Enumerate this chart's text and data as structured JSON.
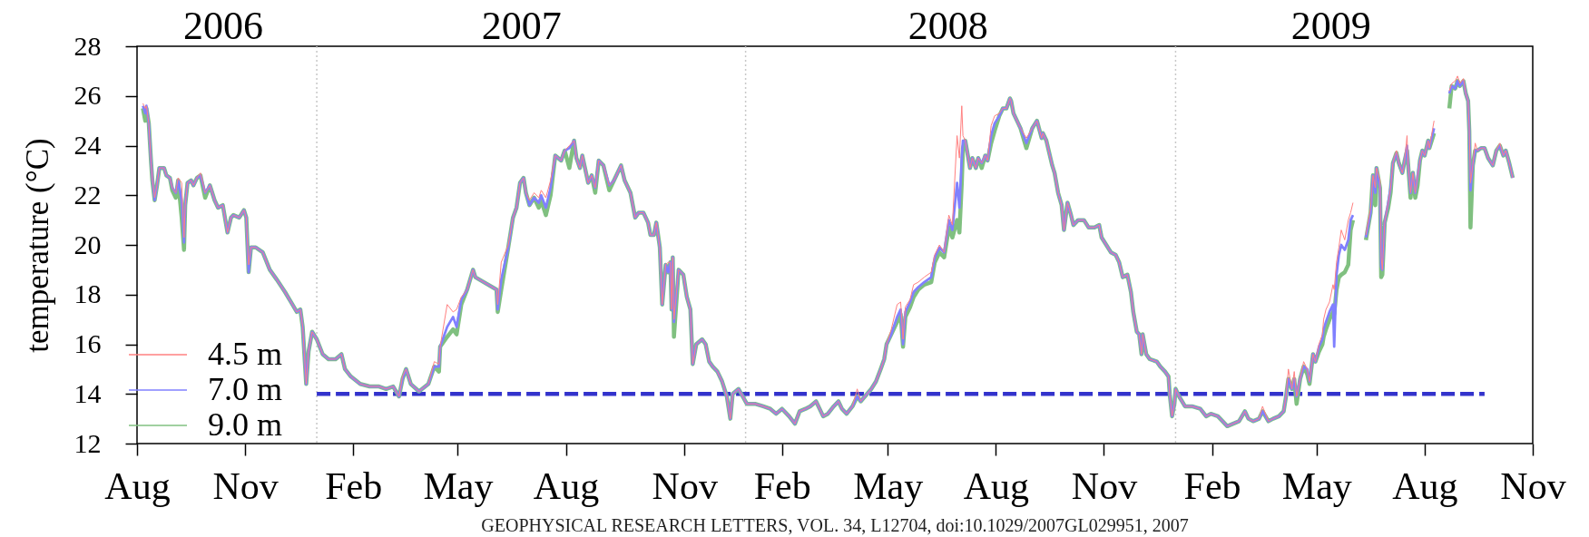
{
  "chart_data": {
    "type": "line",
    "xlabel": null,
    "ylabel": "temperature (°C)",
    "xlim": [
      "2006-08-01",
      "2009-11-01"
    ],
    "xticks": [
      {
        "value": "2006-08-01",
        "label": "Aug"
      },
      {
        "value": "2006-11-01",
        "label": "Nov"
      },
      {
        "value": "2007-02-01",
        "label": "Feb"
      },
      {
        "value": "2007-05-01",
        "label": "May"
      },
      {
        "value": "2007-08-01",
        "label": "Aug"
      },
      {
        "value": "2007-11-10",
        "label": "Nov"
      },
      {
        "value": "2008-02-01",
        "label": "Feb"
      },
      {
        "value": "2008-05-01",
        "label": "May"
      },
      {
        "value": "2008-08-01",
        "label": "Aug"
      },
      {
        "value": "2008-11-01",
        "label": "Nov"
      },
      {
        "value": "2009-02-01",
        "label": "Feb"
      },
      {
        "value": "2009-05-01",
        "label": "May"
      },
      {
        "value": "2009-08-01",
        "label": "Aug"
      },
      {
        "value": "2009-11-01",
        "label": "Nov"
      }
    ],
    "x2lim": [
      "2006-08-01",
      "2009-11-01"
    ],
    "x2ticks": [
      {
        "value": "2006-10-13",
        "label": "2006"
      },
      {
        "value": "2007-06-24",
        "label": "2007"
      },
      {
        "value": "2008-06-21",
        "label": "2008"
      },
      {
        "value": "2009-05-13",
        "label": "2009"
      }
    ],
    "ylim": [
      12,
      28
    ],
    "yticks": [
      12,
      14,
      16,
      18,
      20,
      22,
      24,
      26,
      28
    ],
    "legend": "bottom left",
    "x": [
      "2006-08-06",
      "2006-08-08",
      "2006-08-09",
      "2006-08-11",
      "2006-08-13",
      "2006-08-14",
      "2006-08-16",
      "2006-08-18",
      "2006-08-20",
      "2006-08-24",
      "2006-08-26",
      "2006-08-29",
      "2006-08-31",
      "2006-09-03",
      "2006-09-05",
      "2006-09-08",
      "2006-09-10",
      "2006-09-11",
      "2006-09-13",
      "2006-09-16",
      "2006-09-18",
      "2006-09-21",
      "2006-09-24",
      "2006-09-28",
      "2006-10-02",
      "2006-10-06",
      "2006-10-09",
      "2006-10-13",
      "2006-10-17",
      "2006-10-20",
      "2006-10-22",
      "2006-10-27",
      "2006-10-31",
      "2006-11-02",
      "2006-11-04",
      "2006-11-06",
      "2006-11-10",
      "2006-11-16",
      "2006-11-22",
      "2006-11-28",
      "2006-12-05",
      "2006-12-10",
      "2006-12-15",
      "2006-12-18",
      "2006-12-20",
      "2006-12-23",
      "2006-12-25",
      "2006-12-28",
      "2007-01-01",
      "2007-01-06",
      "2007-01-11",
      "2007-01-17",
      "2007-01-22",
      "2007-01-25",
      "2007-01-30",
      "2007-02-07",
      "2007-02-15",
      "2007-02-23",
      "2007-03-01",
      "2007-03-07",
      "2007-03-12",
      "2007-03-15",
      "2007-03-18",
      "2007-03-22",
      "2007-03-29",
      "2007-04-06",
      "2007-04-11",
      "2007-04-15",
      "2007-04-16",
      "2007-04-22",
      "2007-04-27",
      "2007-04-30",
      "2007-05-04",
      "2007-05-09",
      "2007-05-14",
      "2007-05-16",
      "2007-06-03",
      "2007-06-04",
      "2007-06-07",
      "2007-06-13",
      "2007-06-17",
      "2007-06-20",
      "2007-06-23",
      "2007-06-26",
      "2007-06-28",
      "2007-07-01",
      "2007-07-05",
      "2007-07-09",
      "2007-07-11",
      "2007-07-15",
      "2007-07-19",
      "2007-07-23",
      "2007-07-28",
      "2007-07-31",
      "2007-08-04",
      "2007-08-08",
      "2007-08-10",
      "2007-08-13",
      "2007-08-15",
      "2007-08-20",
      "2007-08-23",
      "2007-08-26",
      "2007-08-29",
      "2007-09-02",
      "2007-09-07",
      "2007-09-11",
      "2007-09-17",
      "2007-09-20",
      "2007-09-25",
      "2007-09-29",
      "2007-10-02",
      "2007-10-06",
      "2007-10-10",
      "2007-10-12",
      "2007-10-15",
      "2007-10-17",
      "2007-10-20",
      "2007-10-22",
      "2007-10-25",
      "2007-10-27",
      "2007-10-29",
      "2007-10-30",
      "2007-10-31",
      "2007-11-01",
      "2007-11-05",
      "2007-11-09",
      "2007-11-12",
      "2007-11-15",
      "2007-11-17",
      "2007-11-20",
      "2007-11-25",
      "2007-11-28",
      "2007-12-01",
      "2007-12-04",
      "2007-12-08",
      "2007-12-12",
      "2007-12-16",
      "2007-12-19",
      "2007-12-21",
      "2007-12-26",
      "2008-01-02",
      "2008-01-09",
      "2008-01-16",
      "2008-01-22",
      "2008-01-27",
      "2008-02-01",
      "2008-02-07",
      "2008-02-12",
      "2008-02-16",
      "2008-02-21",
      "2008-02-25",
      "2008-03-01",
      "2008-03-07",
      "2008-03-11",
      "2008-03-16",
      "2008-03-20",
      "2008-03-23",
      "2008-03-27",
      "2008-04-01",
      "2008-04-05",
      "2008-04-08",
      "2008-04-17",
      "2008-04-21",
      "2008-04-25",
      "2008-04-28",
      "2008-04-30",
      "2008-05-04",
      "2008-05-09",
      "2008-05-12",
      "2008-05-14",
      "2008-05-16",
      "2008-05-20",
      "2008-05-23",
      "2008-05-27",
      "2008-06-01",
      "2008-06-07",
      "2008-06-10",
      "2008-06-14",
      "2008-06-18",
      "2008-06-22",
      "2008-06-25",
      "2008-06-29",
      "2008-07-01",
      "2008-07-03",
      "2008-07-04",
      "2008-07-06",
      "2008-07-10",
      "2008-07-12",
      "2008-07-15",
      "2008-07-17",
      "2008-07-20",
      "2008-07-23",
      "2008-07-25",
      "2008-07-28",
      "2008-07-31",
      "2008-08-04",
      "2008-08-07",
      "2008-08-10",
      "2008-08-13",
      "2008-08-14",
      "2008-08-16",
      "2008-08-22",
      "2008-08-27",
      "2008-09-01",
      "2008-09-05",
      "2008-09-09",
      "2008-09-10",
      "2008-09-13",
      "2008-09-18",
      "2008-09-20",
      "2008-09-23",
      "2008-09-26",
      "2008-09-28",
      "2008-10-01",
      "2008-10-04",
      "2008-10-06",
      "2008-10-10",
      "2008-10-15",
      "2008-10-19",
      "2008-10-24",
      "2008-10-28",
      "2008-10-30",
      "2008-11-03",
      "2008-11-07",
      "2008-11-11",
      "2008-11-14",
      "2008-11-17",
      "2008-11-21",
      "2008-11-24",
      "2008-11-26",
      "2008-11-29",
      "2008-12-01",
      "2008-12-03",
      "2008-12-04",
      "2008-12-07",
      "2008-12-10",
      "2008-12-16",
      "2008-12-19",
      "2008-12-23",
      "2008-12-26",
      "2008-12-27",
      "2008-12-29",
      "2008-12-31",
      "2009-01-01",
      "2009-01-04",
      "2009-01-09",
      "2009-01-15",
      "2009-01-22",
      "2009-01-27",
      "2009-01-31",
      "2009-02-06",
      "2009-02-10",
      "2009-02-14",
      "2009-02-19",
      "2009-02-24",
      "2009-03-01",
      "2009-03-04",
      "2009-03-08",
      "2009-03-13",
      "2009-03-16",
      "2009-03-21",
      "2009-03-25",
      "2009-03-30",
      "2009-04-03",
      "2009-04-05",
      "2009-04-07",
      "2009-04-10",
      "2009-04-12",
      "2009-04-14",
      "2009-04-17",
      "2009-04-20",
      "2009-04-23",
      "2009-04-25",
      "2009-04-28",
      "2009-04-30",
      "2009-05-03",
      "2009-05-06",
      "2009-05-07",
      "2009-05-09",
      "2009-05-12",
      "2009-05-15",
      "2009-05-16",
      "2009-05-18",
      "2009-05-20",
      "2009-05-22",
      "2009-05-25",
      "2009-05-28",
      "2009-05-30",
      "2009-06-01",
      "2009-06-06",
      "2009-06-12",
      "2009-06-16",
      "2009-06-18",
      "2009-06-20",
      "2009-06-21",
      "2009-06-24",
      "2009-06-25",
      "2009-06-26",
      "2009-06-28",
      "2009-07-01",
      "2009-07-03",
      "2009-07-05",
      "2009-07-08",
      "2009-07-10",
      "2009-07-13",
      "2009-07-15",
      "2009-07-17",
      "2009-07-18",
      "2009-07-20",
      "2009-07-22",
      "2009-07-24",
      "2009-07-26",
      "2009-07-28",
      "2009-07-30",
      "2009-08-01",
      "2009-08-04",
      "2009-08-05",
      "2009-08-09",
      "2009-08-15",
      "2009-08-22",
      "2009-08-24",
      "2009-08-27",
      "2009-08-29",
      "2009-08-31",
      "2009-09-03",
      "2009-09-05",
      "2009-09-07",
      "2009-09-08",
      "2009-09-09",
      "2009-09-11",
      "2009-09-13",
      "2009-09-15",
      "2009-09-18",
      "2009-09-21",
      "2009-09-24",
      "2009-09-28",
      "2009-10-01",
      "2009-10-04",
      "2009-10-07",
      "2009-10-09",
      "2009-10-12",
      "2009-10-15"
    ],
    "series": [
      {
        "type": "line",
        "color": "#3333cc",
        "line_style": "dashed",
        "x": [
          "2007-01-01",
          "2009-09-21"
        ],
        "values": [
          14,
          14
        ]
      },
      {
        "name": "4.5 m",
        "color": "#ff8080",
        "values": [
          25.7,
          25.5,
          25.6,
          24.9,
          23.3,
          22.7,
          21.9,
          22.4,
          23.1,
          23.1,
          22.8,
          22.7,
          22.3,
          22.1,
          22.7,
          22.5,
          20.3,
          21.6,
          22.5,
          22.6,
          22.4,
          22.7,
          22.9,
          22.1,
          22.4,
          21.8,
          21.5,
          21.6,
          20.5,
          21.1,
          21.2,
          21.1,
          21.4,
          21.1,
          19.2,
          19.9,
          19.9,
          19.7,
          19.0,
          18.6,
          18.1,
          17.7,
          17.3,
          17.4,
          16.7,
          14.4,
          15.7,
          16.5,
          16.2,
          15.6,
          15.4,
          15.4,
          15.6,
          15.0,
          14.7,
          14.4,
          14.3,
          14.3,
          14.2,
          14.3,
          13.9,
          14.7,
          15.0,
          14.4,
          14.1,
          14.4,
          15.3,
          15.2,
          15.9,
          17.6,
          17.3,
          17.4,
          17.9,
          18.2,
          19.0,
          18.7,
          18.2,
          17.6,
          19.3,
          20.0,
          21.1,
          21.5,
          22.5,
          22.7,
          22.1,
          21.8,
          22.1,
          21.9,
          22.2,
          21.9,
          22.6,
          23.6,
          23.4,
          23.8,
          24.0,
          24.2,
          23.5,
          23.1,
          23.6,
          22.5,
          22.8,
          22.3,
          23.4,
          23.2,
          22.4,
          22.6,
          23.2,
          22.6,
          22.1,
          21.1,
          21.3,
          21.3,
          20.9,
          20.4,
          20.4,
          20.9,
          19.9,
          17.6,
          19.2,
          19.3,
          19.3,
          17.4,
          19.5,
          17.0,
          19.0,
          18.8,
          17.9,
          17.4,
          15.2,
          16.0,
          16.2,
          16.0,
          15.3,
          15.1,
          14.9,
          14.5,
          13.9,
          13.0,
          14.0,
          14.2,
          13.6,
          13.6,
          13.5,
          13.4,
          13.2,
          13.4,
          13.1,
          12.8,
          13.3,
          13.4,
          13.5,
          13.7,
          13.1,
          13.2,
          13.5,
          13.7,
          13.4,
          13.2,
          13.5,
          14.2,
          13.7,
          14.2,
          14.5,
          15.0,
          15.4,
          16.0,
          16.6,
          17.6,
          17.7,
          16.2,
          17.5,
          17.8,
          18.4,
          18.5,
          18.7,
          18.9,
          19.6,
          20.0,
          19.7,
          21.2,
          20.8,
          24.4,
          23.5,
          25.6,
          24.4,
          24.2,
          23.1,
          23.5,
          23.1,
          23.5,
          23.3,
          23.6,
          23.4,
          24.8,
          25.2,
          25.3,
          25.5,
          25.5,
          25.9,
          25.8,
          25.3,
          24.7,
          24.3,
          24.7,
          25.0,
          24.3,
          24.5,
          24.2,
          23.2,
          22.9,
          22.1,
          21.6,
          20.6,
          21.7,
          21.2,
          20.8,
          21.0,
          21.0,
          20.7,
          20.7,
          20.8,
          20.3,
          20.0,
          19.7,
          19.6,
          19.3,
          18.7,
          18.8,
          18.1,
          17.3,
          16.5,
          16.4,
          15.6,
          16.4,
          15.6,
          15.4,
          15.3,
          15.1,
          14.9,
          14.7,
          14.0,
          13.1,
          13.6,
          14.2,
          13.9,
          13.5,
          13.5,
          13.4,
          13.1,
          13.2,
          13.1,
          12.9,
          12.7,
          12.8,
          12.9,
          13.3,
          13.0,
          12.9,
          13.0,
          13.5,
          12.9,
          13.0,
          13.1,
          13.3,
          13.9,
          15.0,
          14.2,
          14.9,
          13.9,
          14.6,
          15.3,
          15.0,
          14.5,
          15.6,
          15.3,
          16.0,
          16.4,
          17.0,
          17.4,
          17.7,
          18.4,
          18.2,
          19.3,
          19.9,
          20.6,
          20.2,
          21.0,
          21.3,
          21.7,
          null,
          20.4,
          21.5,
          22.8,
          22.3,
          23.1,
          22.6,
          19.5,
          19.0,
          20.9,
          21.7,
          22.3,
          23.3,
          23.8,
          23.3,
          22.9,
          23.4,
          24.4,
          23.2,
          22.1,
          22.9,
          22.1,
          22.8,
          23.4,
          23.8,
          23.6,
          24.2,
          23.9,
          25.0,
          null,
          26.2,
          26.5,
          26.6,
          26.8,
          26.5,
          26.7,
          26.1,
          25.8,
          24.6,
          22.5,
          23.2,
          24.1,
          23.8,
          23.9,
          23.9,
          23.5,
          23.2,
          23.8,
          24.1,
          23.6,
          23.8,
          23.3,
          22.7
        ]
      },
      {
        "name": "7.0 m",
        "color": "#8080ff",
        "values": [
          25.6,
          25.3,
          25.6,
          24.9,
          23.3,
          22.7,
          21.8,
          22.4,
          23.1,
          23.1,
          22.8,
          22.7,
          22.3,
          22.1,
          22.6,
          21.8,
          20.1,
          21.6,
          22.5,
          22.6,
          22.4,
          22.7,
          22.8,
          22.1,
          22.4,
          21.8,
          21.5,
          21.6,
          20.5,
          21.1,
          21.2,
          21.1,
          21.4,
          21.1,
          18.9,
          19.9,
          19.9,
          19.7,
          19.0,
          18.6,
          18.1,
          17.7,
          17.3,
          17.4,
          16.7,
          14.4,
          15.7,
          16.5,
          16.2,
          15.6,
          15.4,
          15.4,
          15.6,
          15.0,
          14.7,
          14.4,
          14.3,
          14.3,
          14.2,
          14.3,
          13.9,
          14.6,
          15.0,
          14.4,
          14.1,
          14.4,
          15.1,
          15.1,
          15.9,
          16.7,
          17.1,
          16.7,
          17.8,
          18.2,
          19.0,
          18.7,
          18.2,
          17.4,
          18.6,
          19.9,
          21.1,
          21.5,
          22.5,
          22.7,
          22.1,
          21.6,
          21.9,
          21.7,
          22.0,
          21.5,
          22.3,
          23.6,
          23.4,
          23.8,
          23.9,
          24.2,
          23.5,
          23.1,
          23.6,
          22.5,
          22.8,
          22.3,
          23.4,
          23.2,
          22.4,
          22.6,
          23.2,
          22.6,
          22.1,
          21.1,
          21.3,
          21.3,
          20.9,
          20.4,
          20.4,
          20.9,
          19.9,
          17.6,
          19.2,
          18.9,
          19.3,
          17.4,
          19.5,
          16.9,
          19.0,
          18.8,
          17.9,
          17.4,
          15.2,
          16.0,
          16.2,
          16.0,
          15.3,
          15.1,
          14.9,
          14.5,
          13.9,
          13.0,
          14.0,
          14.2,
          13.6,
          13.6,
          13.5,
          13.4,
          13.2,
          13.4,
          13.1,
          12.8,
          13.3,
          13.4,
          13.5,
          13.7,
          13.1,
          13.2,
          13.5,
          13.7,
          13.4,
          13.2,
          13.5,
          13.9,
          13.7,
          14.2,
          14.5,
          15.0,
          15.4,
          16.0,
          16.4,
          17.1,
          17.4,
          16.0,
          17.3,
          17.7,
          18.1,
          18.3,
          18.5,
          18.7,
          19.5,
          19.9,
          19.7,
          21.0,
          20.6,
          22.5,
          21.5,
          23.5,
          24.2,
          24.2,
          23.1,
          23.5,
          23.1,
          23.5,
          23.3,
          23.6,
          23.4,
          24.4,
          24.9,
          25.2,
          25.5,
          25.5,
          25.9,
          25.8,
          25.3,
          24.7,
          24.1,
          24.7,
          25.0,
          24.3,
          24.5,
          24.2,
          23.2,
          22.9,
          22.1,
          21.6,
          20.6,
          21.7,
          21.2,
          20.8,
          21.0,
          21.0,
          20.7,
          20.7,
          20.8,
          20.3,
          20.0,
          19.7,
          19.6,
          19.3,
          18.7,
          18.8,
          18.1,
          17.3,
          16.5,
          16.4,
          15.6,
          16.4,
          15.6,
          15.4,
          15.3,
          15.1,
          14.9,
          14.7,
          14.0,
          13.1,
          13.6,
          14.2,
          13.9,
          13.5,
          13.5,
          13.4,
          13.1,
          13.2,
          13.1,
          12.9,
          12.7,
          12.8,
          12.9,
          13.3,
          13.0,
          12.9,
          13.0,
          13.3,
          12.9,
          13.0,
          13.1,
          13.3,
          13.9,
          14.6,
          14.2,
          14.6,
          13.9,
          14.6,
          15.1,
          15.0,
          14.5,
          15.6,
          15.3,
          15.9,
          16.2,
          16.6,
          16.9,
          17.3,
          17.6,
          15.9,
          18.8,
          19.6,
          20.0,
          19.8,
          20.2,
          21.0,
          21.2,
          null,
          20.3,
          21.3,
          22.8,
          22.1,
          23.1,
          22.3,
          19.1,
          19.0,
          20.9,
          21.7,
          22.3,
          23.3,
          23.7,
          23.3,
          22.9,
          23.4,
          24.0,
          23.2,
          22.1,
          22.9,
          22.1,
          22.8,
          23.4,
          23.8,
          23.6,
          24.2,
          23.9,
          24.7,
          null,
          26.1,
          26.4,
          26.3,
          26.6,
          26.4,
          26.6,
          26.1,
          25.8,
          24.6,
          22.2,
          23.2,
          23.8,
          23.8,
          23.9,
          23.9,
          23.5,
          23.2,
          23.8,
          24.0,
          23.6,
          23.8,
          23.3,
          22.7
        ]
      },
      {
        "name": "9.0 m",
        "color": "#80c080",
        "values": [
          25.5,
          25.0,
          25.5,
          24.9,
          23.3,
          22.6,
          21.8,
          22.4,
          23.1,
          23.1,
          22.8,
          22.7,
          22.2,
          21.9,
          22.6,
          21.1,
          19.8,
          21.6,
          22.5,
          22.6,
          22.4,
          22.7,
          22.8,
          21.9,
          22.4,
          21.8,
          21.5,
          21.6,
          20.5,
          21.1,
          21.2,
          21.1,
          21.4,
          21.1,
          18.9,
          19.9,
          19.9,
          19.7,
          19.0,
          18.6,
          18.1,
          17.7,
          17.3,
          17.4,
          16.7,
          14.4,
          15.7,
          16.5,
          16.2,
          15.6,
          15.4,
          15.4,
          15.6,
          15.0,
          14.7,
          14.4,
          14.3,
          14.3,
          14.2,
          14.3,
          13.9,
          14.6,
          15.0,
          14.4,
          14.1,
          14.4,
          15.1,
          14.9,
          15.9,
          16.3,
          16.6,
          16.4,
          17.6,
          18.2,
          19.0,
          18.7,
          18.2,
          17.3,
          18.2,
          19.9,
          21.1,
          21.5,
          22.5,
          22.7,
          22.1,
          21.6,
          21.9,
          21.5,
          21.8,
          21.2,
          22.0,
          23.6,
          23.4,
          23.8,
          23.1,
          24.2,
          23.5,
          23.1,
          23.6,
          22.5,
          22.8,
          22.1,
          23.4,
          23.2,
          22.2,
          22.6,
          23.2,
          22.6,
          22.1,
          21.1,
          21.3,
          21.3,
          20.9,
          20.4,
          20.4,
          20.9,
          19.9,
          17.6,
          19.2,
          18.9,
          19.3,
          17.4,
          19.5,
          16.3,
          19.0,
          18.8,
          17.9,
          17.4,
          15.2,
          16.0,
          16.2,
          16.0,
          15.3,
          15.1,
          14.9,
          14.5,
          13.9,
          13.0,
          14.0,
          14.2,
          13.6,
          13.6,
          13.5,
          13.4,
          13.2,
          13.4,
          13.1,
          12.8,
          13.3,
          13.4,
          13.5,
          13.7,
          13.1,
          13.2,
          13.5,
          13.7,
          13.4,
          13.2,
          13.5,
          13.9,
          13.7,
          14.2,
          14.5,
          15.0,
          15.4,
          16.0,
          16.4,
          16.9,
          17.2,
          15.9,
          17.1,
          17.5,
          17.9,
          18.2,
          18.4,
          18.5,
          19.3,
          19.7,
          19.5,
          20.7,
          20.3,
          21.0,
          20.5,
          22.5,
          23.9,
          24.2,
          23.1,
          23.5,
          23.1,
          23.5,
          23.1,
          23.6,
          23.4,
          24.1,
          24.6,
          25.2,
          25.5,
          25.5,
          25.9,
          25.8,
          25.3,
          24.7,
          23.9,
          24.7,
          25.0,
          24.3,
          24.5,
          24.2,
          23.2,
          22.9,
          22.1,
          21.6,
          20.6,
          21.7,
          21.2,
          20.8,
          21.0,
          21.0,
          20.7,
          20.7,
          20.8,
          20.3,
          20.0,
          19.7,
          19.6,
          19.3,
          18.7,
          18.8,
          18.1,
          17.3,
          16.5,
          16.4,
          15.6,
          16.4,
          15.6,
          15.4,
          15.3,
          15.1,
          14.9,
          14.7,
          14.0,
          13.1,
          13.6,
          14.2,
          13.9,
          13.5,
          13.5,
          13.4,
          13.1,
          13.2,
          13.1,
          12.9,
          12.7,
          12.8,
          12.9,
          13.3,
          13.0,
          12.9,
          13.0,
          13.3,
          12.9,
          13.0,
          13.1,
          13.3,
          13.9,
          14.6,
          14.2,
          14.6,
          13.6,
          14.6,
          15.1,
          14.8,
          14.4,
          15.6,
          15.3,
          15.7,
          16.0,
          16.3,
          16.6,
          17.0,
          17.3,
          17.2,
          18.2,
          18.7,
          18.8,
          18.9,
          19.2,
          20.6,
          21.0,
          null,
          20.2,
          21.3,
          22.8,
          21.6,
          23.1,
          22.3,
          18.7,
          18.8,
          20.9,
          21.5,
          22.1,
          23.3,
          23.7,
          23.3,
          22.9,
          23.4,
          23.8,
          23.2,
          21.9,
          22.9,
          21.9,
          22.4,
          23.4,
          23.8,
          23.6,
          24.2,
          23.9,
          24.5,
          null,
          25.5,
          26.4,
          26.3,
          26.6,
          26.4,
          26.6,
          26.1,
          25.8,
          24.6,
          20.7,
          23.2,
          23.8,
          23.8,
          23.9,
          23.9,
          23.5,
          23.2,
          23.8,
          24.0,
          23.6,
          23.8,
          23.3,
          22.7
        ]
      }
    ],
    "ref_lines": [
      {
        "axis": "x",
        "value": "2007-01-01",
        "color": "#c8c8c8",
        "line_style": "dotted"
      },
      {
        "axis": "x",
        "value": "2008-01-01",
        "color": "#c8c8c8",
        "line_style": "dotted"
      },
      {
        "axis": "x",
        "value": "2009-01-01",
        "color": "#c8c8c8",
        "line_style": "dotted"
      }
    ],
    "annotations": [
      "GEOPHYSICAL RESEARCH LETTERS, VOL. 34, L12704, doi:10.1029/2007GL029951, 2007"
    ]
  }
}
